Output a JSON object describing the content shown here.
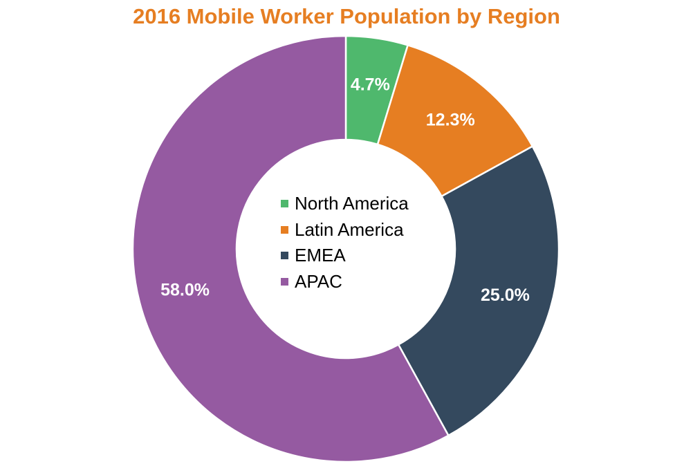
{
  "chart_data": {
    "type": "pie",
    "title": "2016 Mobile Worker Population by Region",
    "categories": [
      "North America",
      "Latin America",
      "EMEA",
      "APAC"
    ],
    "values": [
      4.7,
      12.3,
      25.0,
      58.0
    ],
    "labels": [
      "4.7%",
      "12.3%",
      "25.0%",
      "58.0%"
    ],
    "colors": [
      "#4fb86d",
      "#e67e22",
      "#34495e",
      "#955aa1"
    ],
    "donut": true,
    "legend_position": "center"
  },
  "style": {
    "title_color": "#e67e22",
    "separator_color": "#ffffff",
    "label_color": "#ffffff"
  }
}
